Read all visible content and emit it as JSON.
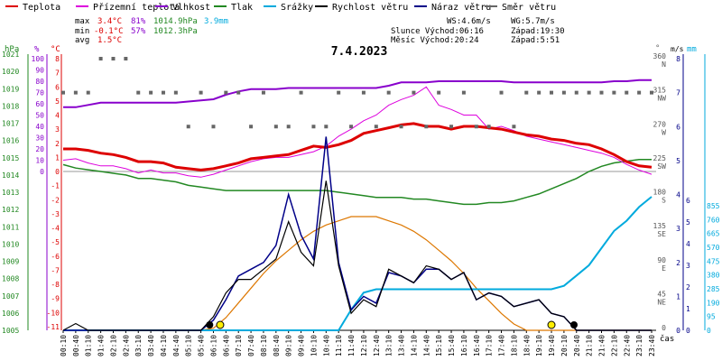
{
  "chart_data": {
    "type": "line",
    "title": "7.4.2023",
    "legend": [
      {
        "label": "Teplota",
        "color": "#dd0000"
      },
      {
        "label": "Přízemní teplota",
        "color": "#dd00dd"
      },
      {
        "label": "Vlhkost",
        "color": "#8800cc"
      },
      {
        "label": "Tlak",
        "color": "#228822"
      },
      {
        "label": "Srážky",
        "color": "#00aadd"
      },
      {
        "label": "Rychlost větru",
        "color": "#000000"
      },
      {
        "label": "Náraz větru",
        "color": "#000088"
      },
      {
        "label": "Směr větru",
        "color": "#666666"
      }
    ],
    "stats": {
      "max_label": "max",
      "max_temp": "3.4°C",
      "max_hum": "81%",
      "max_press": "1014.9hPa",
      "max_rain": "3.9mm",
      "min_label": "min",
      "min_temp": "-0.1°C",
      "min_hum": "57%",
      "min_press": "1012.3hPa",
      "avg_label": "avg",
      "avg_temp": "1.5°C",
      "ws": "WS:4.6m/s",
      "wg": "WG:5.7m/s",
      "sun": "Slunce Východ:06:16",
      "sun_set": "Západ:19:30",
      "moon": "Měsíc  Východ:20:24",
      "moon_set": "Západ:5:51"
    },
    "axis_units": {
      "hpa": "hPa",
      "pct": "%",
      "degc": "°C",
      "deg": "°",
      "ms": "m/s",
      "mm": "mm",
      "time": "čas"
    },
    "axes": {
      "pressure": {
        "ticks": [
          "1021",
          "1020",
          "1019",
          "1018",
          "1017",
          "1016",
          "1015",
          "1014",
          "1013",
          "1012",
          "1011",
          "1010",
          "1009",
          "1008",
          "1007",
          "1006",
          "1005"
        ],
        "range": [
          1005,
          1021
        ]
      },
      "humidity": {
        "ticks": [
          "100",
          "90",
          "80",
          "70",
          "60",
          "50",
          "40",
          "30",
          "20",
          "10",
          "0"
        ],
        "range": [
          0,
          100
        ]
      },
      "temperature": {
        "ticks": [
          "8",
          "7",
          "6",
          "5",
          "4",
          "3",
          "2",
          "1",
          "0",
          "-1",
          "-2",
          "-3",
          "-4",
          "-5",
          "-6",
          "-7",
          "-8",
          "-9",
          "-10",
          "-11"
        ],
        "range": [
          -11,
          8
        ]
      },
      "direction": {
        "ticks": [
          {
            "v": "360",
            "l": "N"
          },
          {
            "v": "315",
            "l": "NW"
          },
          {
            "v": "270",
            "l": "W"
          },
          {
            "v": "225",
            "l": "SW"
          },
          {
            "v": "180",
            "l": "S"
          },
          {
            "v": "135",
            "l": "SE"
          },
          {
            "v": "90",
            "l": "E"
          },
          {
            "v": "45",
            "l": "NE"
          },
          {
            "v": "0",
            "l": ""
          }
        ],
        "range": [
          0,
          360
        ]
      },
      "wind": {
        "ticks": [
          "8",
          "7",
          "6",
          "5",
          "4",
          "3",
          "2",
          "1",
          "0"
        ],
        "range": [
          0,
          8
        ]
      },
      "wind_right": {
        "ticks": [
          "6",
          "5",
          "4",
          "3",
          "2",
          "1",
          "0"
        ]
      },
      "rain": {
        "ticks": [
          "855",
          "760",
          "665",
          "570",
          "475",
          "380",
          "285",
          "190",
          "95",
          "0"
        ],
        "range": [
          0,
          855
        ]
      },
      "time": {
        "ticks": [
          "00:10",
          "00:40",
          "01:10",
          "01:40",
          "02:10",
          "02:40",
          "03:10",
          "03:40",
          "04:10",
          "04:40",
          "05:10",
          "05:40",
          "06:10",
          "06:40",
          "07:10",
          "07:40",
          "08:10",
          "08:40",
          "09:10",
          "09:40",
          "10:10",
          "10:40",
          "11:10",
          "11:40",
          "12:10",
          "12:40",
          "13:10",
          "13:40",
          "14:10",
          "14:40",
          "15:10",
          "15:40",
          "16:10",
          "16:40",
          "17:10",
          "17:40",
          "18:10",
          "18:40",
          "19:10",
          "19:40",
          "20:10",
          "20:40",
          "21:10",
          "21:40",
          "22:10",
          "22:40",
          "23:10",
          "23:40"
        ]
      }
    },
    "hours": [
      0,
      0.5,
      1,
      1.5,
      2,
      2.5,
      3,
      3.5,
      4,
      4.5,
      5,
      5.5,
      6,
      6.5,
      7,
      7.5,
      8,
      8.5,
      9,
      9.5,
      10,
      10.5,
      11,
      11.5,
      12,
      12.5,
      13,
      13.5,
      14,
      14.5,
      15,
      15.5,
      16,
      16.5,
      17,
      17.5,
      18,
      18.5,
      19,
      19.5,
      20,
      20.5,
      21,
      21.5,
      22,
      22.5,
      23,
      23.5
    ],
    "series": [
      {
        "name": "Teplota",
        "values": [
          1.6,
          1.6,
          1.5,
          1.3,
          1.2,
          1.0,
          0.7,
          0.7,
          0.6,
          0.3,
          0.2,
          0.1,
          0.2,
          0.4,
          0.6,
          0.9,
          1.0,
          1.1,
          1.2,
          1.5,
          1.8,
          1.7,
          1.9,
          2.2,
          2.7,
          2.9,
          3.1,
          3.3,
          3.4,
          3.2,
          3.2,
          3.0,
          3.2,
          3.2,
          3.1,
          3.0,
          2.8,
          2.6,
          2.5,
          2.3,
          2.2,
          2.0,
          1.9,
          1.6,
          1.2,
          0.7,
          0.4,
          0.3
        ]
      },
      {
        "name": "Přízemní teplota",
        "values": [
          0.8,
          0.9,
          0.6,
          0.4,
          0.4,
          0.2,
          -0.1,
          0.1,
          -0.1,
          -0.1,
          -0.3,
          -0.4,
          -0.2,
          0.1,
          0.4,
          0.7,
          0.9,
          1.0,
          1.0,
          1.2,
          1.4,
          1.8,
          2.5,
          3.0,
          3.6,
          4.0,
          4.7,
          5.1,
          5.4,
          6.0,
          4.7,
          4.4,
          4.0,
          4.0,
          3.0,
          3.2,
          2.9,
          2.5,
          2.3,
          2.1,
          1.9,
          1.7,
          1.5,
          1.3,
          1.0,
          0.5,
          0.1,
          -0.2
        ]
      },
      {
        "name": "Vlhkost",
        "values": [
          57,
          57,
          59,
          61,
          61,
          61,
          61,
          61,
          61,
          61,
          62,
          63,
          64,
          68,
          71,
          73,
          73,
          73,
          74,
          74,
          74,
          74,
          74,
          74,
          74,
          74,
          76,
          79,
          79,
          79,
          80,
          80,
          80,
          80,
          80,
          80,
          79,
          79,
          79,
          79,
          79,
          79,
          79,
          79,
          80,
          80,
          81,
          81
        ]
      },
      {
        "name": "Tlak",
        "values": [
          1014.6,
          1014.4,
          1014.3,
          1014.2,
          1014.1,
          1014.0,
          1013.8,
          1013.8,
          1013.7,
          1013.6,
          1013.4,
          1013.3,
          1013.2,
          1013.1,
          1013.1,
          1013.1,
          1013.1,
          1013.1,
          1013.1,
          1013.1,
          1013.1,
          1013.1,
          1013.0,
          1012.9,
          1012.8,
          1012.7,
          1012.7,
          1012.7,
          1012.6,
          1012.6,
          1012.5,
          1012.4,
          1012.3,
          1012.3,
          1012.4,
          1012.4,
          1012.5,
          1012.7,
          1012.9,
          1013.2,
          1013.5,
          1013.8,
          1014.2,
          1014.5,
          1014.7,
          1014.8,
          1014.9,
          1014.9
        ]
      },
      {
        "name": "Srážky",
        "values": [
          0,
          0,
          0,
          0,
          0,
          0,
          0,
          0,
          0,
          0,
          0,
          0,
          0,
          0,
          0,
          0,
          0,
          0,
          0,
          0,
          0,
          0,
          0,
          0.6,
          1.1,
          1.2,
          1.2,
          1.2,
          1.2,
          1.2,
          1.2,
          1.2,
          1.2,
          1.2,
          1.2,
          1.2,
          1.2,
          1.2,
          1.2,
          1.2,
          1.3,
          1.6,
          1.9,
          2.4,
          2.9,
          3.2,
          3.6,
          3.9
        ]
      },
      {
        "name": "Rychlost větru",
        "values": [
          0,
          0.2,
          0,
          0,
          0,
          0,
          0,
          0,
          0,
          0,
          0,
          0,
          0.4,
          1.1,
          1.5,
          1.5,
          1.8,
          2.1,
          3.2,
          2.3,
          1.9,
          4.4,
          1.9,
          0.5,
          0.9,
          0.7,
          1.8,
          1.6,
          1.4,
          1.9,
          1.8,
          1.5,
          1.7,
          0.9,
          1.1,
          1.0,
          0.7,
          0.8,
          0.9,
          0.5,
          0.4,
          0,
          0,
          0,
          0,
          0,
          0,
          0
        ]
      },
      {
        "name": "Náraz větru",
        "values": [
          0,
          0,
          0,
          0,
          0,
          0,
          0,
          0,
          0,
          0,
          0,
          0,
          0.3,
          0.9,
          1.6,
          1.8,
          2.0,
          2.5,
          4.0,
          2.8,
          2.1,
          5.7,
          2.0,
          0.6,
          1.0,
          0.8,
          1.7,
          1.6,
          1.4,
          1.8,
          1.8,
          1.5,
          1.7,
          0.9,
          1.1,
          1.0,
          0.7,
          0.8,
          0.9,
          0.5,
          0.4,
          0,
          0,
          0,
          0,
          0,
          0,
          0
        ]
      },
      {
        "name": "Směr větru",
        "values": [
          315,
          315,
          315,
          360,
          360,
          360,
          315,
          315,
          315,
          315,
          270,
          315,
          270,
          315,
          315,
          270,
          315,
          270,
          270,
          315,
          270,
          270,
          315,
          270,
          315,
          270,
          315,
          270,
          315,
          270,
          315,
          270,
          315,
          270,
          270,
          315,
          270,
          315,
          315,
          315,
          315,
          315,
          315,
          315,
          315,
          315,
          315,
          315
        ]
      },
      {
        "name": "Slunce",
        "values": [
          0,
          0,
          0,
          0,
          0,
          0,
          0,
          0,
          0,
          0,
          0,
          0,
          0.1,
          0.6,
          1.3,
          2.0,
          2.7,
          3.3,
          3.8,
          4.3,
          4.7,
          5.0,
          5.2,
          5.4,
          5.4,
          5.4,
          5.2,
          5.0,
          4.7,
          4.3,
          3.8,
          3.3,
          2.7,
          2.0,
          1.4,
          0.8,
          0.3,
          0,
          0,
          0,
          0,
          0,
          0,
          0,
          0,
          0,
          0,
          0
        ]
      }
    ]
  }
}
